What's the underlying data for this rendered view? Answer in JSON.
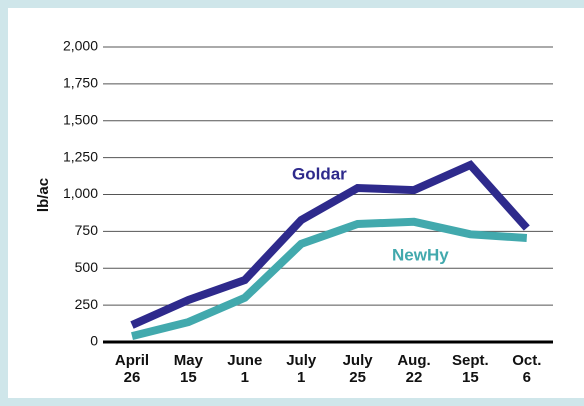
{
  "chart_data": {
    "type": "line",
    "ylabel": "lb/ac",
    "categories": [
      [
        "April",
        "26"
      ],
      [
        "May",
        "15"
      ],
      [
        "June",
        "1"
      ],
      [
        "July",
        "1"
      ],
      [
        "July",
        "25"
      ],
      [
        "Aug.",
        "22"
      ],
      [
        "Sept.",
        "15"
      ],
      [
        "Oct.",
        "6"
      ]
    ],
    "series": [
      {
        "name": "Goldar",
        "color": "#2e2a8c",
        "values": [
          115,
          285,
          420,
          827,
          1044,
          1030,
          1200,
          773
        ]
      },
      {
        "name": "NewHy",
        "color": "#42a9ad",
        "values": [
          40,
          135,
          300,
          665,
          800,
          815,
          730,
          705
        ]
      }
    ],
    "ylim": [
      0,
      2000
    ],
    "yticks": [
      0,
      250,
      500,
      750,
      {
        "value": 1000,
        "label": "1,000"
      },
      {
        "value": 1250,
        "label": "1,250"
      },
      {
        "value": 1500,
        "label": "1,500"
      },
      {
        "value": 1750,
        "label": "1,750"
      },
      {
        "value": 2000,
        "label": "2,000"
      }
    ],
    "grid": true
  }
}
